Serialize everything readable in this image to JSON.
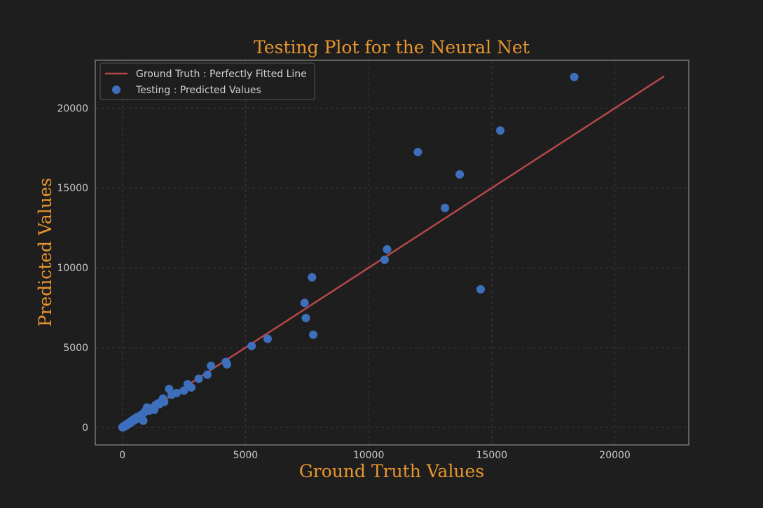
{
  "chart_data": {
    "type": "scatter",
    "title": "Testing Plot for the Neural Net",
    "xlabel": "Ground Truth Values",
    "ylabel": "Predicted Values",
    "xlim": [
      -1100,
      23000
    ],
    "ylim": [
      -1100,
      23000
    ],
    "x_ticks": [
      0,
      5000,
      10000,
      15000,
      20000
    ],
    "y_ticks": [
      0,
      5000,
      10000,
      15000,
      20000
    ],
    "x_tick_labels": [
      "0",
      "5000",
      "10000",
      "15000",
      "20000"
    ],
    "y_tick_labels": [
      "0",
      "5000",
      "10000",
      "15000",
      "20000"
    ],
    "grid": true,
    "legend_position": "top-left",
    "colors": {
      "background": "#1e1e1e",
      "title": "#e8962f",
      "line": "#b5474c",
      "points": "#3d6fbd",
      "grid": "#3a3a3a",
      "axes": "#8c8c8c",
      "ticks": "#c9c9c9"
    },
    "legend": [
      {
        "label": "Ground Truth : Perfectly Fitted Line",
        "kind": "line"
      },
      {
        "label": "Testing : Predicted Values",
        "kind": "marker"
      }
    ],
    "series": [
      {
        "name": "Ground Truth : Perfectly Fitted Line",
        "type": "line",
        "x": [
          0,
          22000
        ],
        "y": [
          0,
          22000
        ]
      },
      {
        "name": "Testing : Predicted Values",
        "type": "scatter",
        "points": [
          [
            0,
            0
          ],
          [
            30,
            60
          ],
          [
            60,
            30
          ],
          [
            100,
            120
          ],
          [
            150,
            100
          ],
          [
            200,
            230
          ],
          [
            250,
            210
          ],
          [
            300,
            330
          ],
          [
            350,
            290
          ],
          [
            400,
            450
          ],
          [
            450,
            420
          ],
          [
            500,
            560
          ],
          [
            550,
            500
          ],
          [
            600,
            650
          ],
          [
            650,
            600
          ],
          [
            700,
            720
          ],
          [
            750,
            680
          ],
          [
            800,
            820
          ],
          [
            850,
            420
          ],
          [
            900,
            950
          ],
          [
            950,
            1050
          ],
          [
            1000,
            1250
          ],
          [
            1100,
            1050
          ],
          [
            1200,
            1200
          ],
          [
            1300,
            1100
          ],
          [
            1350,
            1400
          ],
          [
            1450,
            1500
          ],
          [
            1500,
            1450
          ],
          [
            1600,
            1650
          ],
          [
            1650,
            1800
          ],
          [
            1700,
            1600
          ],
          [
            1900,
            2400
          ],
          [
            2000,
            2050
          ],
          [
            2200,
            2150
          ],
          [
            2500,
            2300
          ],
          [
            2650,
            2700
          ],
          [
            2800,
            2500
          ],
          [
            3100,
            3050
          ],
          [
            3450,
            3300
          ],
          [
            3600,
            3850
          ],
          [
            4200,
            4100
          ],
          [
            4250,
            3950
          ],
          [
            5250,
            5100
          ],
          [
            5900,
            5550
          ],
          [
            7400,
            7800
          ],
          [
            7450,
            6850
          ],
          [
            7700,
            9400
          ],
          [
            7750,
            5800
          ],
          [
            10650,
            10500
          ],
          [
            10750,
            11150
          ],
          [
            12000,
            17250
          ],
          [
            13100,
            13750
          ],
          [
            13700,
            15850
          ],
          [
            14550,
            8650
          ],
          [
            15350,
            18600
          ],
          [
            18350,
            21950
          ]
        ]
      }
    ]
  }
}
